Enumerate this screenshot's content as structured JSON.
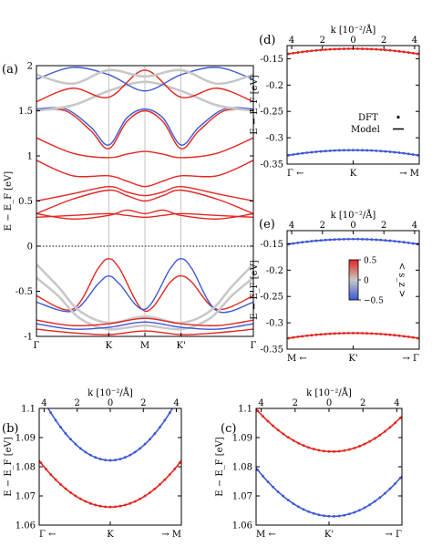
{
  "chart_data": [
    {
      "id": "a",
      "panel_label": "(a)",
      "type": "line",
      "ylabel": "E − E_F [eV]",
      "ylim": [
        -1,
        2
      ],
      "yticks": [
        -1,
        -0.5,
        0,
        0.5,
        1,
        1.5,
        2
      ],
      "xticks": [
        "Γ",
        "K",
        "M",
        "K'",
        "Γ"
      ],
      "xtick_pos": [
        0,
        1,
        1.5,
        2,
        3
      ],
      "fermi_level": 0,
      "colors": {
        "up": "#e3261f",
        "down": "#3b57d6",
        "mixed": "#c8c8c8"
      },
      "series": [
        {
          "color": "#e3261f",
          "x": [
            0,
            0.5,
            1,
            1.25,
            1.5,
            1.75,
            2,
            2.5,
            3
          ],
          "y": [
            0.32,
            0.34,
            0.36,
            0.34,
            0.32,
            0.34,
            0.36,
            0.34,
            0.32
          ]
        },
        {
          "color": "#e3261f",
          "x": [
            0,
            0.5,
            1,
            1.25,
            1.5,
            1.75,
            2,
            2.5,
            3
          ],
          "y": [
            0.36,
            0.3,
            0.34,
            0.4,
            0.36,
            0.4,
            0.34,
            0.3,
            0.36
          ]
        },
        {
          "color": "#e3261f",
          "x": [
            0,
            0.5,
            1,
            1.25,
            1.5,
            1.75,
            2,
            2.5,
            3
          ],
          "y": [
            0.36,
            0.52,
            0.62,
            0.56,
            0.5,
            0.56,
            0.62,
            0.52,
            0.36
          ]
        },
        {
          "color": "#e3261f",
          "x": [
            0,
            0.5,
            1,
            1.25,
            1.5,
            1.75,
            2,
            2.5,
            3
          ],
          "y": [
            0.5,
            0.58,
            0.66,
            0.6,
            0.56,
            0.6,
            0.66,
            0.58,
            0.5
          ]
        },
        {
          "color": "#e3261f",
          "x": [
            0,
            0.5,
            1,
            1.25,
            1.5,
            1.75,
            2,
            2.5,
            3
          ],
          "y": [
            0.95,
            0.78,
            0.78,
            0.72,
            0.66,
            0.72,
            0.78,
            0.78,
            0.95
          ]
        },
        {
          "color": "#e3261f",
          "x": [
            0,
            0.5,
            1,
            1.25,
            1.5,
            1.75,
            2,
            2.5,
            3
          ],
          "y": [
            1.2,
            1.03,
            0.98,
            1.02,
            1.05,
            1.02,
            0.98,
            1.03,
            1.2
          ]
        },
        {
          "color": "#e3261f",
          "x": [
            0,
            0.4,
            0.75,
            1,
            1.25,
            1.5,
            1.75,
            2,
            2.25,
            2.6,
            3
          ],
          "y": [
            1.5,
            1.5,
            1.28,
            1.08,
            1.38,
            1.5,
            1.38,
            1.08,
            1.28,
            1.5,
            1.5
          ]
        },
        {
          "color": "#3b57d6",
          "x": [
            0,
            0.4,
            0.75,
            1,
            1.25,
            1.5,
            1.75,
            2,
            2.25,
            2.6,
            3
          ],
          "y": [
            1.52,
            1.52,
            1.32,
            1.12,
            1.42,
            1.52,
            1.42,
            1.12,
            1.32,
            1.52,
            1.52
          ]
        },
        {
          "color": "#c8c8c8",
          "x": [
            0,
            0.5,
            1,
            1.5,
            2,
            2.5,
            3
          ],
          "y": [
            1.5,
            1.56,
            1.72,
            1.82,
            1.72,
            1.56,
            1.5
          ]
        },
        {
          "color": "#e3261f",
          "x": [
            0,
            0.5,
            1,
            1.5,
            2,
            2.5,
            3
          ],
          "y": [
            1.6,
            1.75,
            1.65,
            1.95,
            1.65,
            1.75,
            1.6
          ]
        },
        {
          "color": "#3b57d6",
          "x": [
            0,
            0.5,
            1,
            1.5,
            2,
            2.5,
            3
          ],
          "y": [
            1.85,
            1.98,
            1.9,
            1.72,
            1.9,
            1.98,
            1.85
          ]
        },
        {
          "color": "#c8c8c8",
          "x": [
            0,
            0.5,
            1,
            1.5,
            2,
            2.5,
            3
          ],
          "y": [
            1.9,
            1.8,
            1.95,
            1.88,
            1.95,
            1.8,
            1.9
          ]
        },
        {
          "color": "#e3261f",
          "x": [
            0,
            0.5,
            0.85,
            1,
            1.15,
            1.5,
            1.85,
            2,
            2.15,
            2.5,
            3
          ],
          "y": [
            -0.55,
            -0.7,
            -0.25,
            -0.14,
            -0.25,
            -0.72,
            -0.4,
            -0.33,
            -0.4,
            -0.7,
            -0.55
          ]
        },
        {
          "color": "#3b57d6",
          "x": [
            0,
            0.5,
            0.85,
            1,
            1.15,
            1.5,
            1.85,
            2,
            2.15,
            2.5,
            3
          ],
          "y": [
            -0.62,
            -0.72,
            -0.42,
            -0.33,
            -0.42,
            -0.7,
            -0.25,
            -0.14,
            -0.25,
            -0.72,
            -0.62
          ]
        },
        {
          "color": "#c8c8c8",
          "x": [
            0,
            0.3,
            0.6,
            1,
            1.5,
            2,
            2.4,
            2.7,
            3
          ],
          "y": [
            -0.2,
            -0.45,
            -0.72,
            -0.85,
            -0.78,
            -0.85,
            -0.72,
            -0.45,
            -0.2
          ]
        },
        {
          "color": "#c8c8c8",
          "x": [
            0,
            0.3,
            0.6,
            1,
            1.5,
            2,
            2.4,
            2.7,
            3
          ],
          "y": [
            -0.35,
            -0.55,
            -0.8,
            -0.92,
            -0.88,
            -0.92,
            -0.8,
            -0.55,
            -0.35
          ]
        },
        {
          "color": "#e3261f",
          "x": [
            0,
            0.5,
            1,
            1.5,
            2,
            2.5,
            3
          ],
          "y": [
            -0.82,
            -0.88,
            -0.86,
            -0.8,
            -0.86,
            -0.88,
            -0.82
          ]
        },
        {
          "color": "#3b57d6",
          "x": [
            0,
            0.5,
            1,
            1.5,
            2,
            2.5,
            3
          ],
          "y": [
            -0.86,
            -0.92,
            -0.9,
            -0.84,
            -0.9,
            -0.92,
            -0.86
          ]
        },
        {
          "color": "#e3261f",
          "x": [
            0,
            0.5,
            1,
            1.5,
            2,
            2.5,
            3
          ],
          "y": [
            -0.92,
            -0.96,
            -0.98,
            -0.94,
            -0.98,
            -0.96,
            -0.92
          ]
        }
      ]
    },
    {
      "id": "b",
      "panel_label": "(b)",
      "type": "line",
      "ylabel": "E − E_F [eV]",
      "top_axis_label": "k [10⁻²/Å]",
      "top_ticks": [
        "4",
        "2",
        "0",
        "2",
        "4"
      ],
      "xlim": [
        -4.3,
        4.3
      ],
      "ylim": [
        1.06,
        1.1
      ],
      "yticks": [
        1.06,
        1.07,
        1.08,
        1.09,
        1.1
      ],
      "xticks": [
        "Γ ←",
        "K",
        "→ M"
      ],
      "xtick_pos": [
        -4.3,
        0,
        4.3
      ],
      "series": [
        {
          "color": "#3b57d6",
          "band_min": 1.0822,
          "curvature": 0.00126,
          "k0": 0
        },
        {
          "color": "#e3261f",
          "band_min": 1.0662,
          "curvature": 0.00086,
          "k0": 0
        }
      ]
    },
    {
      "id": "c",
      "panel_label": "(c)",
      "type": "line",
      "ylabel": "E − E_F [eV]",
      "top_axis_label": "k [10⁻²/Å]",
      "top_ticks": [
        "4",
        "2",
        "0",
        "2",
        "4"
      ],
      "xlim": [
        -4.3,
        4.3
      ],
      "ylim": [
        1.06,
        1.1
      ],
      "yticks": [
        1.06,
        1.07,
        1.08,
        1.09,
        1.1
      ],
      "xticks": [
        "M ←",
        "K'",
        "→ Γ"
      ],
      "xtick_pos": [
        -4.3,
        0,
        4.3
      ],
      "series": [
        {
          "color": "#e3261f",
          "band_min": 1.0852,
          "curvature": 0.00072,
          "k0": 0.2
        },
        {
          "color": "#3b57d6",
          "band_min": 1.063,
          "curvature": 0.00082,
          "k0": 0.2
        }
      ]
    },
    {
      "id": "d",
      "panel_label": "(d)",
      "type": "line",
      "ylabel": "E − E_F [eV]",
      "top_axis_label": "k [10⁻²/Å]",
      "top_ticks": [
        "4",
        "2",
        "0",
        "2",
        "4"
      ],
      "xlim": [
        -4.3,
        4.3
      ],
      "ylim": [
        -0.35,
        -0.125
      ],
      "yticks": [
        -0.35,
        -0.3,
        -0.25,
        -0.2,
        -0.15
      ],
      "xticks": [
        "Γ ←",
        "K",
        "→ M"
      ],
      "xtick_pos": [
        -4.3,
        0,
        4.3
      ],
      "legend": {
        "position": "right",
        "dft": "DFT",
        "model": "Model"
      },
      "series": [
        {
          "color": "#e3261f",
          "band_min": -0.131,
          "curvature": -0.00055,
          "k0": 0
        },
        {
          "color": "#3b57d6",
          "band_min": -0.3235,
          "curvature": -0.00055,
          "k0": 0
        }
      ]
    },
    {
      "id": "e",
      "panel_label": "(e)",
      "type": "line",
      "ylabel": "E − E_F [eV]",
      "top_axis_label": "k [10⁻²/Å]",
      "top_ticks": [
        "4",
        "2",
        "0",
        "2",
        "4"
      ],
      "xlim": [
        -4.3,
        4.3
      ],
      "ylim": [
        -0.35,
        -0.125
      ],
      "yticks": [
        -0.35,
        -0.3,
        -0.25,
        -0.2,
        -0.15
      ],
      "xticks": [
        "M ←",
        "K'",
        "→ Γ"
      ],
      "xtick_pos": [
        -4.3,
        0,
        4.3
      ],
      "colorbar": {
        "label": "< s_z >",
        "ticks": [
          "0.5",
          "0",
          "−0.5"
        ],
        "top_color": "#e3261f",
        "mid_color": "#c8c8c8",
        "bottom_color": "#3b57d6"
      },
      "series": [
        {
          "color": "#3b57d6",
          "band_min": -0.141,
          "curvature": -0.00055,
          "k0": 0
        },
        {
          "color": "#e3261f",
          "band_min": -0.3195,
          "curvature": -0.00055,
          "k0": 0
        }
      ]
    }
  ]
}
